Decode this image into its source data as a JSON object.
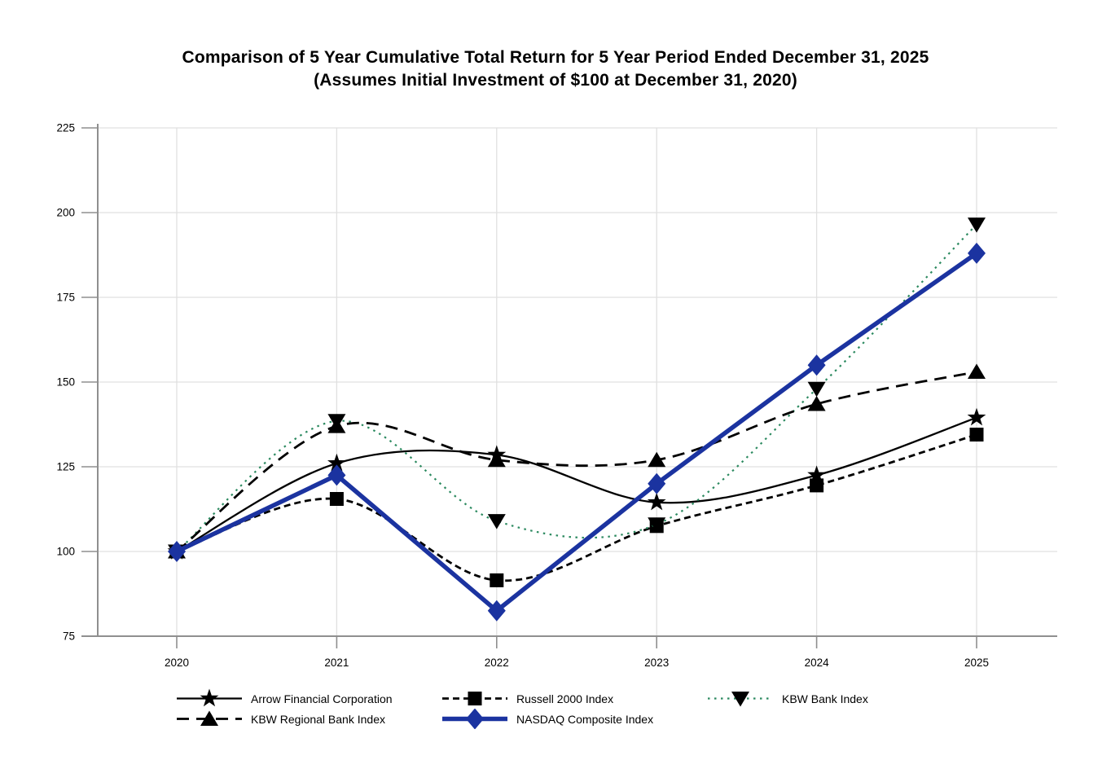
{
  "title": {
    "line1": "Comparison of 5 Year Cumulative Total Return for 5 Year Period Ended December 31, 2025",
    "line2": "(Assumes Initial Investment of $100 at December 31, 2020)"
  },
  "chart_data": {
    "type": "line",
    "categories": [
      "2020",
      "2021",
      "2022",
      "2023",
      "2024",
      "2025"
    ],
    "series": [
      {
        "name": "Arrow Financial Corporation",
        "values": [
          100,
          126,
          128.5,
          114.5,
          122.5,
          139.5
        ],
        "color": "#000000",
        "line": "solid",
        "width": 2.3,
        "marker": "star",
        "smooth": true
      },
      {
        "name": "Russell 2000 Index",
        "values": [
          100,
          115.5,
          91.5,
          107.5,
          119.5,
          134.5
        ],
        "color": "#000000",
        "line": "dash",
        "width": 2.8,
        "marker": "square",
        "smooth": true
      },
      {
        "name": "KBW Bank Index",
        "values": [
          100,
          138.5,
          109,
          108,
          148,
          196.5
        ],
        "color": "#2c8a60",
        "marker_color": "#000000",
        "line": "dot",
        "width": 2.2,
        "marker": "triangle-down",
        "smooth": true
      },
      {
        "name": "KBW Regional Bank Index",
        "values": [
          100,
          137,
          127,
          127,
          143.5,
          153
        ],
        "color": "#000000",
        "line": "longdash",
        "width": 2.8,
        "marker": "triangle-up",
        "smooth": true
      },
      {
        "name": "NASDAQ Composite Index",
        "values": [
          100,
          122.5,
          82.5,
          120,
          155,
          188
        ],
        "color": "#1b33a0",
        "line": "solid",
        "width": 5.5,
        "marker": "diamond",
        "smooth": false
      }
    ],
    "xlabel": "",
    "ylabel": "",
    "ylim": [
      75,
      225
    ],
    "yticks": [
      75,
      100,
      125,
      150,
      175,
      200,
      225
    ],
    "grid": true,
    "legend_position": "bottom"
  }
}
